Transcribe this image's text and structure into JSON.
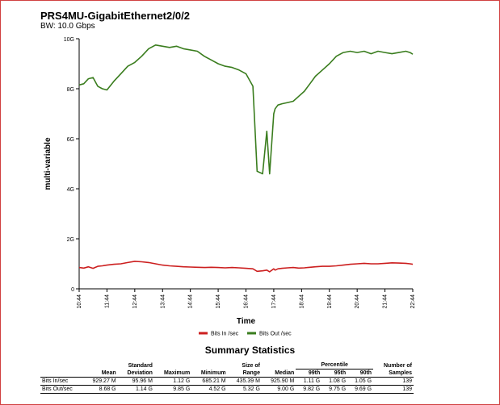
{
  "header": {
    "title": "PRS4MU-GigabitEthernet2/0/2",
    "subtitle": "BW: 10.0 Gbps"
  },
  "chart_data": {
    "type": "line",
    "xlabel": "Time",
    "ylabel": "multi-variable",
    "ylim": [
      0,
      10
    ],
    "y_ticks": [
      0,
      2,
      4,
      6,
      8,
      10
    ],
    "y_tick_labels": [
      "0",
      "2G",
      "4G",
      "6G",
      "8G",
      "10G"
    ],
    "x_tick_labels": [
      "10:44",
      "11:44",
      "12:44",
      "13:44",
      "14:44",
      "15:44",
      "16:44",
      "17:44",
      "18:44",
      "19:44",
      "20:44",
      "21:44",
      "22:44"
    ],
    "grid": false,
    "legend_position": "bottom",
    "x": [
      0,
      0.167,
      0.333,
      0.5,
      0.667,
      0.833,
      1,
      1.25,
      1.5,
      1.75,
      2,
      2.25,
      2.5,
      2.75,
      3,
      3.25,
      3.5,
      3.75,
      4,
      4.25,
      4.5,
      4.75,
      5,
      5.25,
      5.5,
      5.75,
      6,
      6.25,
      6.4,
      6.6,
      6.75,
      6.85,
      7,
      7.05,
      7.15,
      7.3,
      7.5,
      7.7,
      7.9,
      8.1,
      8.3,
      8.5,
      8.75,
      9,
      9.25,
      9.5,
      9.75,
      10,
      10.25,
      10.5,
      10.75,
      11,
      11.25,
      11.5,
      11.75,
      11.9,
      12
    ],
    "series": [
      {
        "name": "Bits In /sec",
        "color": "#cc1f1f",
        "values": [
          0.85,
          0.83,
          0.88,
          0.82,
          0.9,
          0.92,
          0.95,
          0.98,
          1.0,
          1.05,
          1.1,
          1.08,
          1.05,
          1.0,
          0.95,
          0.92,
          0.9,
          0.88,
          0.87,
          0.86,
          0.85,
          0.86,
          0.85,
          0.84,
          0.85,
          0.84,
          0.82,
          0.8,
          0.7,
          0.72,
          0.75,
          0.68,
          0.8,
          0.75,
          0.8,
          0.82,
          0.84,
          0.85,
          0.83,
          0.84,
          0.86,
          0.88,
          0.9,
          0.9,
          0.92,
          0.95,
          0.98,
          1.0,
          1.02,
          1.0,
          1.0,
          1.02,
          1.04,
          1.03,
          1.02,
          1.0,
          0.98
        ]
      },
      {
        "name": "Bits Out /sec",
        "color": "#3a7d1e",
        "values": [
          8.15,
          8.2,
          8.4,
          8.45,
          8.1,
          8.0,
          7.95,
          8.3,
          8.6,
          8.9,
          9.05,
          9.3,
          9.6,
          9.75,
          9.7,
          9.65,
          9.7,
          9.6,
          9.55,
          9.5,
          9.3,
          9.15,
          9.0,
          8.9,
          8.85,
          8.75,
          8.6,
          8.1,
          4.7,
          4.6,
          6.3,
          4.6,
          7.0,
          7.2,
          7.35,
          7.4,
          7.45,
          7.5,
          7.7,
          7.9,
          8.2,
          8.5,
          8.75,
          9.0,
          9.3,
          9.45,
          9.5,
          9.45,
          9.5,
          9.4,
          9.5,
          9.45,
          9.4,
          9.45,
          9.5,
          9.45,
          9.38
        ]
      }
    ]
  },
  "stats": {
    "title": "Summary Statistics",
    "headers": {
      "mean": "Mean",
      "std_top": "Standard",
      "std_bottom": "Deviation",
      "maximum": "Maximum",
      "minimum": "Minimum",
      "range_top": "Size of",
      "range_bottom": "Range",
      "median": "Median",
      "percentile": "Percentile",
      "p99": "99th",
      "p95": "95th",
      "p90": "90th",
      "samples_top": "Number of",
      "samples_bottom": "Samples"
    },
    "rows": [
      {
        "label": "Bits In/sec",
        "mean": "929.27 M",
        "std": "95.96 M",
        "max": "1.12 G",
        "min": "685.21 M",
        "range": "435.39 M",
        "median": "925.90 M",
        "p99": "1.11 G",
        "p95": "1.08 G",
        "p90": "1.05 G",
        "samples": "139"
      },
      {
        "label": "Bits Out/sec",
        "mean": "8.68 G",
        "std": "1.14 G",
        "max": "9.85 G",
        "min": "4.52 G",
        "range": "5.32 G",
        "median": "9.00 G",
        "p99": "9.82 G",
        "p95": "9.75 G",
        "p90": "9.69 G",
        "samples": "139"
      }
    ]
  }
}
